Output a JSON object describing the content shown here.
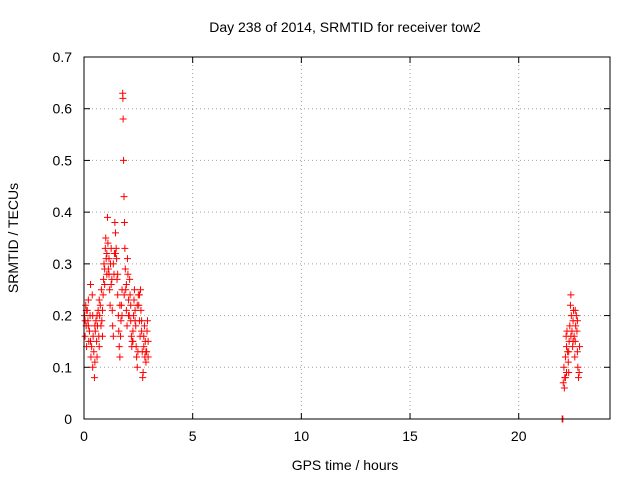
{
  "chart_data": {
    "type": "scatter",
    "title": "Day 238 of 2014, SRMTID for receiver tow2",
    "xlabel": "GPS time / hours",
    "ylabel": "SRMTID / TECUs",
    "xlim": [
      0,
      24.2
    ],
    "ylim": [
      0,
      0.7
    ],
    "xticks": [
      0,
      5,
      10,
      15,
      20
    ],
    "yticks": [
      0,
      0.1,
      0.2,
      0.3,
      0.4,
      0.5,
      0.6,
      0.7
    ],
    "xtick_labels": [
      "0",
      "5",
      "10",
      "15",
      "20"
    ],
    "ytick_labels": [
      "0",
      "0.1",
      "0.2",
      "0.3",
      "0.4",
      "0.5",
      "0.6",
      "0.7"
    ],
    "grid": true,
    "marker": "+",
    "color": "#ff0000",
    "series": [
      {
        "name": "SRMTID",
        "points": [
          [
            0.02,
            0.2
          ],
          [
            0.05,
            0.16
          ],
          [
            0.08,
            0.22
          ],
          [
            0.1,
            0.18
          ],
          [
            0.12,
            0.14
          ],
          [
            0.15,
            0.21
          ],
          [
            0.18,
            0.19
          ],
          [
            0.2,
            0.23
          ],
          [
            0.22,
            0.15
          ],
          [
            0.25,
            0.17
          ],
          [
            0.28,
            0.2
          ],
          [
            0.3,
            0.26
          ],
          [
            0.32,
            0.12
          ],
          [
            0.35,
            0.14
          ],
          [
            0.38,
            0.24
          ],
          [
            0.4,
            0.1
          ],
          [
            0.42,
            0.16
          ],
          [
            0.45,
            0.13
          ],
          [
            0.48,
            0.08
          ],
          [
            0.5,
            0.11
          ],
          [
            0.52,
            0.17
          ],
          [
            0.55,
            0.19
          ],
          [
            0.58,
            0.15
          ],
          [
            0.6,
            0.12
          ],
          [
            0.62,
            0.18
          ],
          [
            0.65,
            0.21
          ],
          [
            0.68,
            0.16
          ],
          [
            0.7,
            0.14
          ],
          [
            0.72,
            0.2
          ],
          [
            0.75,
            0.22
          ],
          [
            0.78,
            0.18
          ],
          [
            0.8,
            0.25
          ],
          [
            0.82,
            0.19
          ],
          [
            0.85,
            0.16
          ],
          [
            0.88,
            0.24
          ],
          [
            0.9,
            0.27
          ],
          [
            0.92,
            0.3
          ],
          [
            0.95,
            0.26
          ],
          [
            0.98,
            0.33
          ],
          [
            1.0,
            0.35
          ],
          [
            1.02,
            0.31
          ],
          [
            1.05,
            0.28
          ],
          [
            1.08,
            0.39
          ],
          [
            1.1,
            0.34
          ],
          [
            1.12,
            0.29
          ],
          [
            1.15,
            0.31
          ],
          [
            1.18,
            0.25
          ],
          [
            1.2,
            0.22
          ],
          [
            1.22,
            0.3
          ],
          [
            1.25,
            0.33
          ],
          [
            1.28,
            0.27
          ],
          [
            1.3,
            0.21
          ],
          [
            1.32,
            0.18
          ],
          [
            1.35,
            0.16
          ],
          [
            1.38,
            0.28
          ],
          [
            1.4,
            0.32
          ],
          [
            1.42,
            0.38
          ],
          [
            1.45,
            0.36
          ],
          [
            1.48,
            0.33
          ],
          [
            1.5,
            0.31
          ],
          [
            1.52,
            0.27
          ],
          [
            1.55,
            0.24
          ],
          [
            1.58,
            0.2
          ],
          [
            1.6,
            0.17
          ],
          [
            1.62,
            0.14
          ],
          [
            1.65,
            0.12
          ],
          [
            1.68,
            0.16
          ],
          [
            1.7,
            0.19
          ],
          [
            1.72,
            0.22
          ],
          [
            1.75,
            0.25
          ],
          [
            1.78,
            0.63
          ],
          [
            1.79,
            0.62
          ],
          [
            1.8,
            0.58
          ],
          [
            1.82,
            0.5
          ],
          [
            1.84,
            0.43
          ],
          [
            1.86,
            0.38
          ],
          [
            1.88,
            0.33
          ],
          [
            1.9,
            0.29
          ],
          [
            1.92,
            0.25
          ],
          [
            1.95,
            0.21
          ],
          [
            1.98,
            0.18
          ],
          [
            2.0,
            0.31
          ],
          [
            2.02,
            0.28
          ],
          [
            2.05,
            0.23
          ],
          [
            2.08,
            0.2
          ],
          [
            2.1,
            0.27
          ],
          [
            2.12,
            0.24
          ],
          [
            2.15,
            0.19
          ],
          [
            2.18,
            0.16
          ],
          [
            2.2,
            0.14
          ],
          [
            2.22,
            0.15
          ],
          [
            2.25,
            0.17
          ],
          [
            2.28,
            0.2
          ],
          [
            2.3,
            0.23
          ],
          [
            2.32,
            0.25
          ],
          [
            2.35,
            0.21
          ],
          [
            2.38,
            0.18
          ],
          [
            2.4,
            0.14
          ],
          [
            2.42,
            0.12
          ],
          [
            2.45,
            0.1
          ],
          [
            2.48,
            0.13
          ],
          [
            2.5,
            0.24
          ],
          [
            2.52,
            0.22
          ],
          [
            2.55,
            0.19
          ],
          [
            2.58,
            0.16
          ],
          [
            2.6,
            0.25
          ],
          [
            2.62,
            0.21
          ],
          [
            2.65,
            0.17
          ],
          [
            2.68,
            0.13
          ],
          [
            2.7,
            0.08
          ],
          [
            2.72,
            0.09
          ],
          [
            2.75,
            0.14
          ],
          [
            2.78,
            0.18
          ],
          [
            2.8,
            0.12
          ],
          [
            2.82,
            0.15
          ],
          [
            2.85,
            0.11
          ],
          [
            2.88,
            0.13
          ],
          [
            2.9,
            0.17
          ],
          [
            2.92,
            0.19
          ],
          [
            2.95,
            0.12
          ],
          [
            0.05,
            0.19
          ],
          [
            0.1,
            0.21
          ],
          [
            0.2,
            0.18
          ],
          [
            0.3,
            0.15
          ],
          [
            0.4,
            0.2
          ],
          [
            0.5,
            0.18
          ],
          [
            0.6,
            0.2
          ],
          [
            0.7,
            0.23
          ],
          [
            0.85,
            0.21
          ],
          [
            0.95,
            0.29
          ],
          [
            1.05,
            0.32
          ],
          [
            1.15,
            0.28
          ],
          [
            1.25,
            0.26
          ],
          [
            1.35,
            0.3
          ],
          [
            1.45,
            0.32
          ],
          [
            1.55,
            0.28
          ],
          [
            1.65,
            0.22
          ],
          [
            1.75,
            0.2
          ],
          [
            1.85,
            0.24
          ],
          [
            1.95,
            0.26
          ],
          [
            2.05,
            0.2
          ],
          [
            2.15,
            0.22
          ],
          [
            2.25,
            0.15
          ],
          [
            2.35,
            0.19
          ],
          [
            2.45,
            0.22
          ],
          [
            2.55,
            0.24
          ],
          [
            2.65,
            0.19
          ],
          [
            2.75,
            0.16
          ],
          [
            2.85,
            0.13
          ],
          [
            2.95,
            0.15
          ],
          [
            22.0,
            0.0
          ],
          [
            22.03,
            0.0
          ],
          [
            22.05,
            0.07
          ],
          [
            22.08,
            0.1
          ],
          [
            22.1,
            0.06
          ],
          [
            22.12,
            0.08
          ],
          [
            22.15,
            0.12
          ],
          [
            22.18,
            0.16
          ],
          [
            22.2,
            0.14
          ],
          [
            22.22,
            0.17
          ],
          [
            22.25,
            0.13
          ],
          [
            22.28,
            0.11
          ],
          [
            22.3,
            0.09
          ],
          [
            22.32,
            0.15
          ],
          [
            22.35,
            0.18
          ],
          [
            22.38,
            0.22
          ],
          [
            22.4,
            0.24
          ],
          [
            22.42,
            0.2
          ],
          [
            22.45,
            0.17
          ],
          [
            22.48,
            0.14
          ],
          [
            22.5,
            0.19
          ],
          [
            22.52,
            0.21
          ],
          [
            22.55,
            0.16
          ],
          [
            22.58,
            0.12
          ],
          [
            22.6,
            0.15
          ],
          [
            22.62,
            0.18
          ],
          [
            22.65,
            0.2
          ],
          [
            22.68,
            0.17
          ],
          [
            22.7,
            0.13
          ],
          [
            22.72,
            0.1
          ],
          [
            22.75,
            0.08
          ],
          [
            22.78,
            0.09
          ],
          [
            22.8,
            0.14
          ],
          [
            22.2,
            0.09
          ],
          [
            22.3,
            0.13
          ],
          [
            22.4,
            0.16
          ],
          [
            22.5,
            0.15
          ],
          [
            22.6,
            0.21
          ],
          [
            22.7,
            0.19
          ],
          [
            22.15,
            0.08
          ]
        ]
      }
    ]
  }
}
